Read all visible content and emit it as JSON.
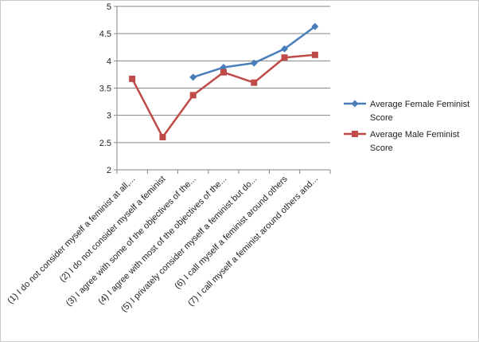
{
  "chart_data": {
    "type": "line",
    "title": "",
    "xlabel": "",
    "ylabel": "",
    "ylim": [
      2,
      5
    ],
    "y_ticks": [
      "2",
      "2.5",
      "3",
      "3.5",
      "4",
      "4.5",
      "5"
    ],
    "grid": "horizontal",
    "legend_position": "right",
    "categories": [
      "(1) I do not consider myself a feminist at all,...",
      "(2) I do not consider myself a feminist",
      "(3) I agree with some of the objectives of the...",
      "(4) I agree with most of the objectives of the...",
      "(5) I privately consider myself a feminist but do...",
      "(6) I call myself a feminist around others",
      "(7) I call myself a feminist around others and..."
    ],
    "series": [
      {
        "name": "Average Female Feminist Score",
        "legend_lines": [
          "Average Female Feminist",
          "Score"
        ],
        "color": "#4a7ebb",
        "marker": "diamond",
        "values": [
          null,
          null,
          3.7,
          3.88,
          3.96,
          4.22,
          4.63
        ]
      },
      {
        "name": "Average Male Feminist Score",
        "legend_lines": [
          "Average Male Feminist",
          "Score"
        ],
        "color": "#be4b48",
        "marker": "square",
        "values": [
          3.67,
          2.6,
          3.37,
          3.79,
          3.6,
          4.06,
          4.11
        ]
      }
    ]
  }
}
